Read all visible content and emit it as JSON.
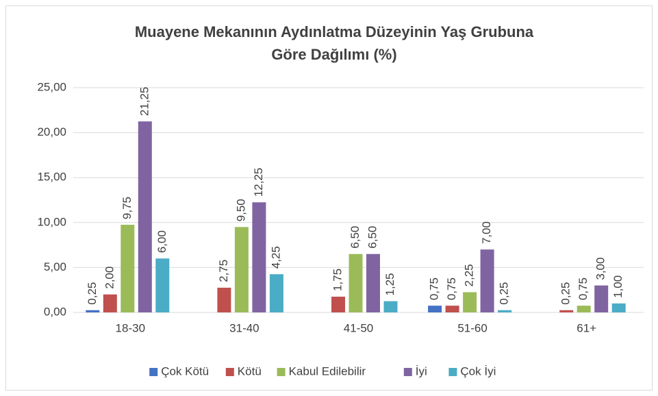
{
  "chart_data": {
    "type": "bar",
    "title": [
      "Muayene Mekanının Aydınlatma Düzeyinin  Yaş Grubuna",
      "Göre Dağılımı (%)"
    ],
    "categories": [
      "18-30",
      "31-40",
      "41-50",
      "51-60",
      "61+"
    ],
    "series": [
      {
        "name": "Çok Kötü",
        "color": "#4472c4",
        "values": [
          0.25,
          null,
          null,
          0.75,
          null
        ],
        "value_labels": [
          "0,25",
          null,
          null,
          "0,75",
          null
        ]
      },
      {
        "name": "Kötü",
        "color": "#c0504d",
        "values": [
          2.0,
          2.75,
          1.75,
          0.75,
          0.25
        ],
        "value_labels": [
          "2,00",
          "2,75",
          "1,75",
          "0,75",
          "0,25"
        ]
      },
      {
        "name": "Kabul Edilebilir",
        "color": "#9bbb59",
        "values": [
          9.75,
          9.5,
          6.5,
          2.25,
          0.75
        ],
        "value_labels": [
          "9,75",
          "9,50",
          "6,50",
          "2,25",
          "0,75"
        ]
      },
      {
        "name": "İyi",
        "color": "#8064a2",
        "values": [
          21.25,
          12.25,
          6.5,
          7.0,
          3.0
        ],
        "value_labels": [
          "21,25",
          "12,25",
          "6,50",
          "7,00",
          "3,00"
        ]
      },
      {
        "name": "Çok İyi",
        "color": "#4bacc6",
        "values": [
          6.0,
          4.25,
          1.25,
          0.25,
          1.0
        ],
        "value_labels": [
          "6,00",
          "4,25",
          "1,25",
          "0,25",
          "1,00"
        ]
      }
    ],
    "ylim": [
      0,
      25
    ],
    "yticks": [
      {
        "value": 0,
        "label": "0,00"
      },
      {
        "value": 5,
        "label": "5,00"
      },
      {
        "value": 10,
        "label": "10,00"
      },
      {
        "value": 15,
        "label": "15,00"
      },
      {
        "value": 20,
        "label": "20,00"
      },
      {
        "value": 25,
        "label": "25,00"
      }
    ],
    "grid": true,
    "legend": "bottom"
  }
}
